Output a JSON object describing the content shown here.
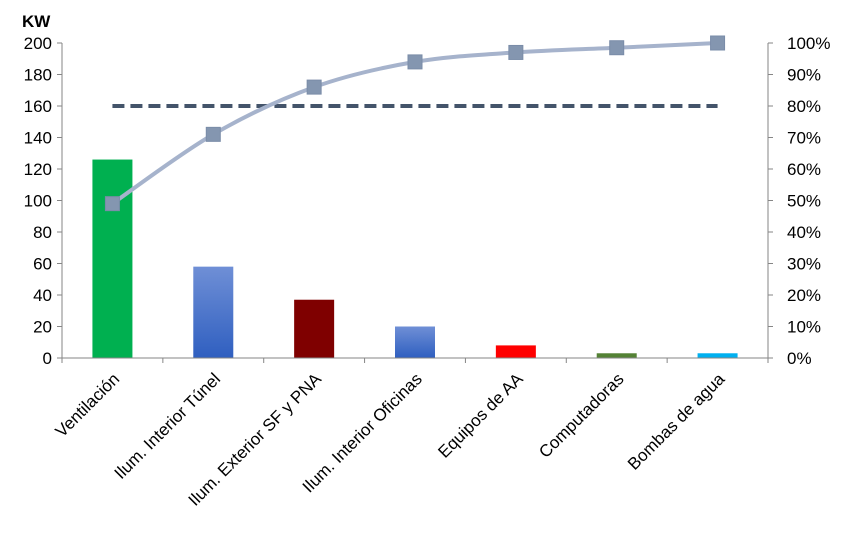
{
  "chart_data": {
    "type": "bar",
    "title": "",
    "ylabel": "KW",
    "categories": [
      "Ventilación",
      "Ilum. Interior Túnel",
      "Ilum. Exterior SF y PNA",
      "Ilum. Interior Oficinas",
      "Equipos de AA",
      "Computadoras",
      "Bombas de agua"
    ],
    "values": [
      126,
      58,
      37,
      20,
      8,
      3,
      3
    ],
    "bar_colors": [
      "#00b050",
      "#4472c4",
      "#7f0000",
      "#4472c4",
      "#ff0000",
      "#548235",
      "#00b0f0"
    ],
    "bar_gradient_categories": [
      "Ilum. Interior Túnel",
      "Ilum. Interior Oficinas"
    ],
    "ylim": [
      0,
      200
    ],
    "yticks": [
      0,
      20,
      40,
      60,
      80,
      100,
      120,
      140,
      160,
      180,
      200
    ],
    "y2lim": [
      0,
      100
    ],
    "y2ticks": [
      "0%",
      "10%",
      "20%",
      "30%",
      "40%",
      "50%",
      "60%",
      "70%",
      "80%",
      "90%",
      "100%"
    ],
    "cumulative_percent": [
      49,
      71,
      86,
      94,
      97,
      98.5,
      100
    ],
    "cumulative_color": "#a6b3cc",
    "cumulative_marker_color": "#8496b0",
    "threshold_percent": 80,
    "threshold_color": "#44546a",
    "grid": false,
    "legend": "none"
  }
}
